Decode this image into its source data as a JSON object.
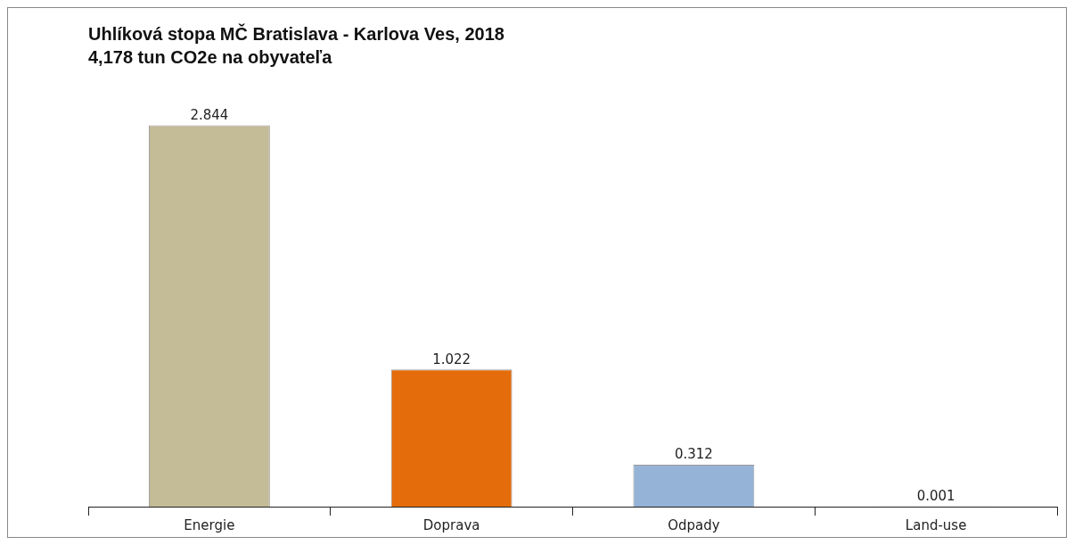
{
  "chart_data": {
    "type": "bar",
    "title": "Uhlíková stopa MČ Bratislava - Karlova Ves, 2018",
    "subtitle": "4,178 tun CO2e na obyvateľa",
    "categories": [
      "Energie",
      "Doprava",
      "Odpady",
      "Land-use"
    ],
    "values": [
      2.844,
      1.022,
      0.312,
      0.001
    ],
    "colors": [
      "#c4bb97",
      "#e46c0a",
      "#95b3d7",
      "#9bbb59"
    ],
    "data_labels": true,
    "legend": false,
    "grid": false
  }
}
